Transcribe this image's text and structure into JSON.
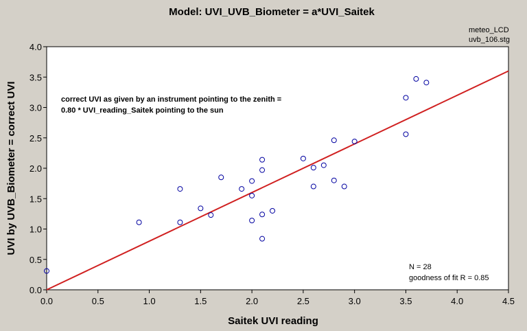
{
  "chart_data": {
    "type": "scatter",
    "title": "Model: UVI_UVB_Biometer = a*UVI_Saitek",
    "xlabel": "Saitek UVI reading",
    "ylabel": "UVI by UVB_Biometer = correct UVI",
    "xlim": [
      0.0,
      4.5
    ],
    "ylim": [
      0.0,
      4.0
    ],
    "x_ticks": [
      "0.0",
      "0.5",
      "1.0",
      "1.5",
      "2.0",
      "2.5",
      "3.0",
      "3.5",
      "4.0",
      "4.5"
    ],
    "y_ticks": [
      "0.0",
      "0.5",
      "1.0",
      "1.5",
      "2.0",
      "2.5",
      "3.0",
      "3.5",
      "4.0"
    ],
    "grid": false,
    "points": [
      {
        "x": 0.0,
        "y": 0.31
      },
      {
        "x": 0.9,
        "y": 1.11
      },
      {
        "x": 1.3,
        "y": 1.11
      },
      {
        "x": 1.3,
        "y": 1.66
      },
      {
        "x": 1.5,
        "y": 1.34
      },
      {
        "x": 1.6,
        "y": 1.23
      },
      {
        "x": 1.7,
        "y": 1.85
      },
      {
        "x": 1.9,
        "y": 1.66
      },
      {
        "x": 2.0,
        "y": 1.14
      },
      {
        "x": 2.0,
        "y": 1.55
      },
      {
        "x": 2.0,
        "y": 1.79
      },
      {
        "x": 2.1,
        "y": 0.84
      },
      {
        "x": 2.1,
        "y": 1.24
      },
      {
        "x": 2.1,
        "y": 1.97
      },
      {
        "x": 2.1,
        "y": 2.14
      },
      {
        "x": 2.2,
        "y": 1.3
      },
      {
        "x": 2.5,
        "y": 2.16
      },
      {
        "x": 2.6,
        "y": 1.7
      },
      {
        "x": 2.6,
        "y": 2.01
      },
      {
        "x": 2.7,
        "y": 2.05
      },
      {
        "x": 2.8,
        "y": 1.8
      },
      {
        "x": 2.8,
        "y": 2.46
      },
      {
        "x": 2.9,
        "y": 1.7
      },
      {
        "x": 3.0,
        "y": 2.44
      },
      {
        "x": 3.5,
        "y": 2.56
      },
      {
        "x": 3.5,
        "y": 3.16
      },
      {
        "x": 3.6,
        "y": 3.47
      },
      {
        "x": 3.7,
        "y": 3.41
      }
    ],
    "fit_line": {
      "slope": 0.8,
      "intercept": 0.0
    },
    "annotation_lines": [
      "correct UVI as given by an instrument pointing to the zenith =",
      "0.80 * UVI_reading_Saitek pointing to the sun"
    ],
    "stats_lines": [
      "N = 28",
      "goodness of fit R = 0.85"
    ],
    "note_lines": [
      "meteo_LCD",
      "uvb_106.stg"
    ],
    "colors": {
      "background": "#d4d0c8",
      "plot_background": "#ffffff",
      "points": "#0000a0",
      "fit_line": "#d02020"
    }
  }
}
